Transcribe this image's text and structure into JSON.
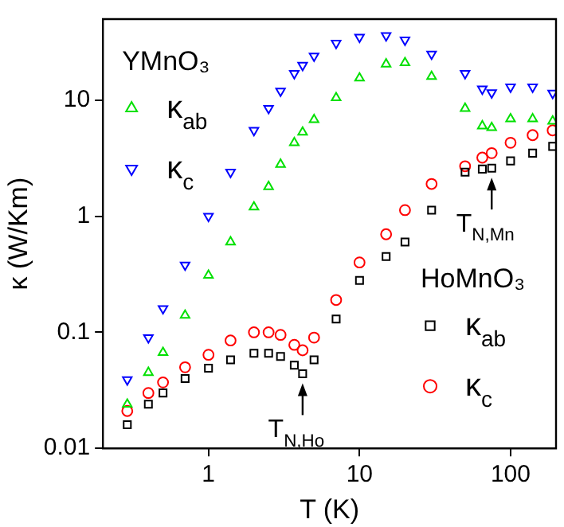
{
  "chart_data": {
    "type": "scatter",
    "xlabel": "T (K)",
    "ylabel": "κ (W/Km)",
    "log": "xy",
    "xlim": [
      0.2,
      200
    ],
    "ylim": [
      0.01,
      50
    ],
    "xticks": [
      1,
      10,
      100
    ],
    "yticks": [
      0.01,
      0.1,
      1,
      10
    ],
    "grid": false,
    "legend": "left",
    "annotations": [
      "YMnO₃",
      "HoMnO₃",
      {
        "text": "T$_{N,Ho}$",
        "x": 4.2,
        "y": 0.044
      },
      {
        "text": "T$_{N,Mn}$",
        "x": 75,
        "y": 2.6
      }
    ],
    "x": [
      0.29,
      0.4,
      0.5,
      0.7,
      1,
      1.4,
      2,
      2.5,
      3,
      3.7,
      4.2,
      5,
      7,
      10,
      15,
      20,
      30,
      50,
      65,
      75,
      100,
      140,
      190
    ],
    "series": [
      {
        "name": "κ$_{ab}$",
        "color": "#00e000",
        "marker": "triangle",
        "values": [
          0.024,
          0.045,
          0.067,
          0.14,
          0.31,
          0.6,
          1.2,
          1.8,
          2.8,
          4.3,
          5.3,
          6.8,
          10.5,
          15.5,
          20.5,
          21,
          16,
          8.5,
          6,
          5.8,
          6.9,
          6.9,
          6.6
        ]
      },
      {
        "name": "κ$_{c}$",
        "color": "#0000ff",
        "marker": "triangle-down",
        "values": [
          0.039,
          0.09,
          0.16,
          0.38,
          1.0,
          2.4,
          5.5,
          8.5,
          12,
          17,
          20,
          24,
          31,
          35,
          36,
          33,
          25,
          17,
          12.5,
          11.6,
          13,
          13,
          11.5
        ]
      },
      {
        "name": "κ$_{ab}$",
        "color": "#000000",
        "marker": "square",
        "values": [
          0.016,
          0.024,
          0.03,
          0.04,
          0.049,
          0.058,
          0.066,
          0.066,
          0.062,
          0.052,
          0.044,
          0.058,
          0.13,
          0.28,
          0.45,
          0.6,
          1.13,
          2.4,
          2.55,
          2.6,
          3.0,
          3.5,
          4.0
        ]
      },
      {
        "name": "κ$_{c}$",
        "color": "#ff0000",
        "marker": "circle",
        "values": [
          0.021,
          0.03,
          0.037,
          0.05,
          0.064,
          0.085,
          0.1,
          0.1,
          0.095,
          0.078,
          0.07,
          0.09,
          0.19,
          0.4,
          0.7,
          1.13,
          1.9,
          2.7,
          3.2,
          3.5,
          4.3,
          5.0,
          5.5
        ]
      }
    ]
  }
}
